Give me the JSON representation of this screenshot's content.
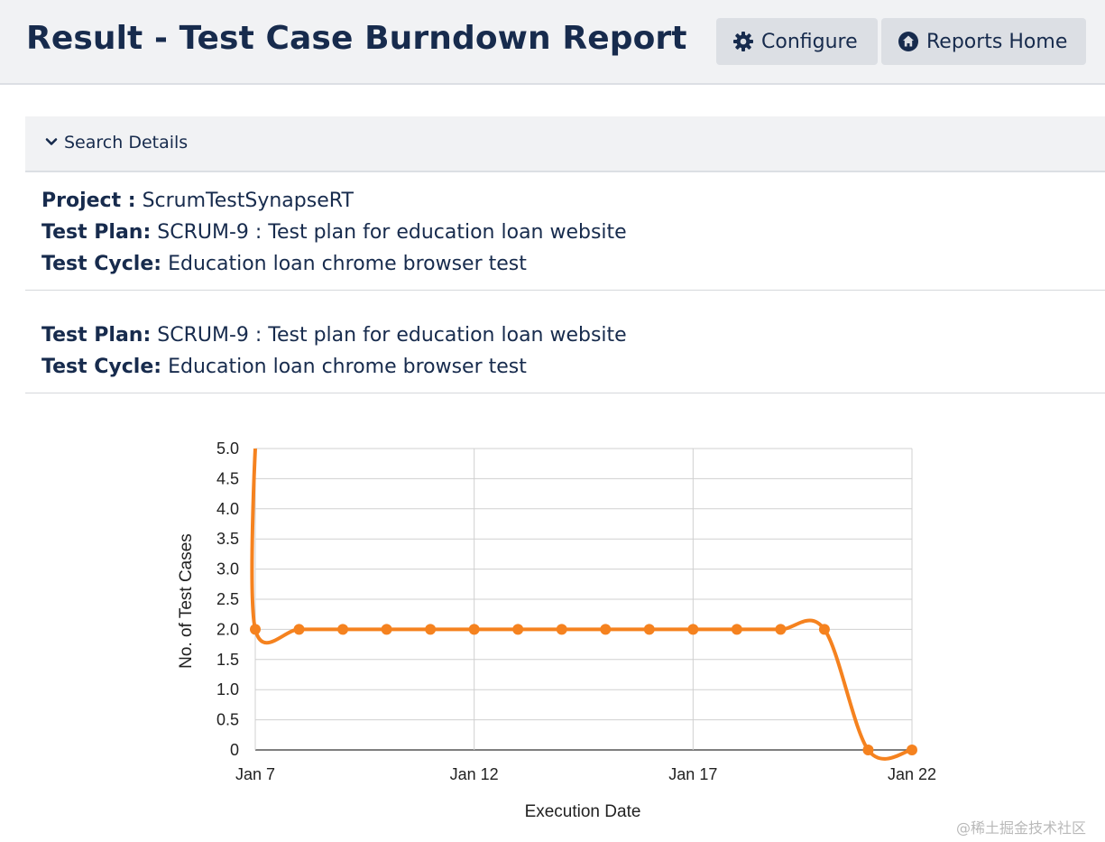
{
  "header": {
    "title": "Result - Test Case Burndown Report",
    "configure_label": "Configure",
    "reports_home_label": "Reports Home"
  },
  "search": {
    "toggle_label": "Search Details"
  },
  "details": {
    "project_label": "Project :",
    "project_value": "ScrumTestSynapseRT",
    "test_plan_label": "Test Plan:",
    "test_plan_value": "SCRUM-9 : Test plan for education loan website",
    "test_cycle_label": "Test Cycle:",
    "test_cycle_value": "Education loan chrome browser test"
  },
  "details2": {
    "test_plan_label": "Test Plan:",
    "test_plan_value": "SCRUM-9 : Test plan for education loan website",
    "test_cycle_label": "Test Cycle:",
    "test_cycle_value": "Education loan chrome browser test"
  },
  "chart_data": {
    "type": "line",
    "xlabel": "Execution Date",
    "ylabel": "No. of Test Cases",
    "ylim": [
      0,
      5
    ],
    "yticks": [
      "5.0",
      "4.5",
      "4.0",
      "3.5",
      "3.0",
      "2.5",
      "2.0",
      "1.5",
      "1.0",
      "0.5",
      "0"
    ],
    "xticks": [
      "Jan 7",
      "Jan 12",
      "Jan 17",
      "Jan 22"
    ],
    "xlim": [
      "Jan 7",
      "Jan 22"
    ],
    "grid": true,
    "line_color": "#f5821f",
    "series": [
      {
        "x": [
          "Jan 7",
          "Jan 7",
          "Jan 8",
          "Jan 9",
          "Jan 10",
          "Jan 11",
          "Jan 12",
          "Jan 13",
          "Jan 14",
          "Jan 15",
          "Jan 16",
          "Jan 17",
          "Jan 18",
          "Jan 19",
          "Jan 20",
          "Jan 21",
          "Jan 22"
        ],
        "values": [
          5,
          2,
          2,
          2,
          2,
          2,
          2,
          2,
          2,
          2,
          2,
          2,
          2,
          2,
          2,
          0,
          0
        ]
      }
    ]
  },
  "watermark": "@稀土掘金技术社区"
}
